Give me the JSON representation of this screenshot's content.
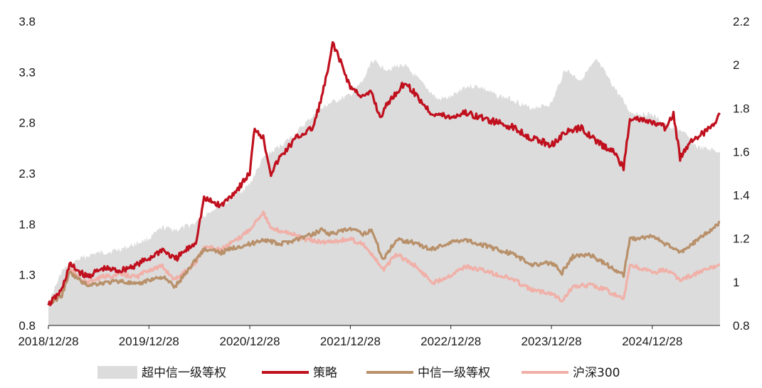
{
  "chart_data": {
    "type": "line",
    "title": "",
    "xlabel": "",
    "ylabel": "",
    "x_tick_labels": [
      "2018/12/28",
      "2019/12/28",
      "2020/12/28",
      "2021/12/28",
      "2022/12/28",
      "2023/12/28",
      "2024/12/28"
    ],
    "x_range": [
      "2018/12/28",
      "2025/08/31"
    ],
    "y_left": {
      "ticks": [
        "3.8",
        "3.3",
        "2.8",
        "2.3",
        "1.8",
        "1.3",
        "0.8"
      ],
      "lim": [
        0.8,
        3.8
      ]
    },
    "y_right": {
      "ticks": [
        "2.2",
        "2",
        "1.8",
        "1.6",
        "1.4",
        "1.2",
        "1",
        "0.8"
      ],
      "lim": [
        0.8,
        2.2
      ]
    },
    "grid": false,
    "legend_position": "bottom",
    "colors": {
      "超中信一级等权": "#dcdcdc",
      "策略": "#c0101e",
      "中信一级等权": "#b8906a",
      "沪深300": "#f0b0a8"
    },
    "series": [
      {
        "name": "超中信一级等权",
        "type": "area",
        "axis": "right",
        "points": [
          [
            "2018/12/28",
            0.9
          ],
          [
            "2019/02/15",
            1.05
          ],
          [
            "2019/04/10",
            1.1
          ],
          [
            "2019/06/10",
            1.13
          ],
          [
            "2019/08/10",
            1.14
          ],
          [
            "2019/10/10",
            1.16
          ],
          [
            "2019/12/28",
            1.2
          ],
          [
            "2020/02/15",
            1.25
          ],
          [
            "2020/04/10",
            1.24
          ],
          [
            "2020/06/10",
            1.27
          ],
          [
            "2020/08/10",
            1.33
          ],
          [
            "2020/10/10",
            1.37
          ],
          [
            "2020/12/28",
            1.45
          ],
          [
            "2021/02/15",
            1.57
          ],
          [
            "2021/04/10",
            1.62
          ],
          [
            "2021/06/10",
            1.68
          ],
          [
            "2021/08/10",
            1.76
          ],
          [
            "2021/10/10",
            1.82
          ],
          [
            "2021/12/28",
            1.86
          ],
          [
            "2022/02/15",
            1.93
          ],
          [
            "2022/03/15",
            2.02
          ],
          [
            "2022/05/10",
            1.98
          ],
          [
            "2022/07/10",
            2.0
          ],
          [
            "2022/09/10",
            1.92
          ],
          [
            "2022/11/10",
            1.84
          ],
          [
            "2022/12/28",
            1.85
          ],
          [
            "2023/02/15",
            1.9
          ],
          [
            "2023/04/10",
            1.9
          ],
          [
            "2023/06/10",
            1.86
          ],
          [
            "2023/08/10",
            1.84
          ],
          [
            "2023/10/10",
            1.8
          ],
          [
            "2023/12/28",
            1.82
          ],
          [
            "2024/02/15",
            1.98
          ],
          [
            "2024/04/10",
            1.93
          ],
          [
            "2024/06/10",
            2.02
          ],
          [
            "2024/08/10",
            1.9
          ],
          [
            "2024/10/10",
            1.78
          ],
          [
            "2024/12/28",
            1.77
          ],
          [
            "2025/02/15",
            1.72
          ],
          [
            "2025/04/10",
            1.7
          ],
          [
            "2025/06/10",
            1.62
          ],
          [
            "2025/08/31",
            1.6
          ]
        ]
      },
      {
        "name": "策略",
        "type": "line",
        "axis": "left",
        "points": [
          [
            "2018/12/28",
            1.0
          ],
          [
            "2019/02/15",
            1.15
          ],
          [
            "2019/03/15",
            1.4
          ],
          [
            "2019/05/15",
            1.28
          ],
          [
            "2019/07/15",
            1.36
          ],
          [
            "2019/09/15",
            1.34
          ],
          [
            "2019/11/15",
            1.4
          ],
          [
            "2019/12/28",
            1.46
          ],
          [
            "2020/02/15",
            1.55
          ],
          [
            "2020/04/01",
            1.45
          ],
          [
            "2020/06/15",
            1.62
          ],
          [
            "2020/07/15",
            2.05
          ],
          [
            "2020/09/15",
            1.98
          ],
          [
            "2020/11/15",
            2.15
          ],
          [
            "2020/12/28",
            2.3
          ],
          [
            "2021/01/15",
            2.75
          ],
          [
            "2021/02/15",
            2.65
          ],
          [
            "2021/03/15",
            2.3
          ],
          [
            "2021/04/15",
            2.45
          ],
          [
            "2021/06/15",
            2.65
          ],
          [
            "2021/08/15",
            2.75
          ],
          [
            "2021/09/15",
            3.05
          ],
          [
            "2021/10/15",
            3.4
          ],
          [
            "2021/10/25",
            3.6
          ],
          [
            "2021/11/15",
            3.45
          ],
          [
            "2021/12/28",
            3.15
          ],
          [
            "2022/02/15",
            3.05
          ],
          [
            "2022/03/15",
            3.1
          ],
          [
            "2022/04/15",
            2.85
          ],
          [
            "2022/05/15",
            3.0
          ],
          [
            "2022/07/15",
            3.2
          ],
          [
            "2022/08/15",
            3.1
          ],
          [
            "2022/10/15",
            2.9
          ],
          [
            "2022/12/28",
            2.85
          ],
          [
            "2023/02/15",
            2.9
          ],
          [
            "2023/04/15",
            2.85
          ],
          [
            "2023/06/15",
            2.8
          ],
          [
            "2023/08/15",
            2.75
          ],
          [
            "2023/10/15",
            2.65
          ],
          [
            "2023/12/28",
            2.58
          ],
          [
            "2024/02/15",
            2.7
          ],
          [
            "2024/04/15",
            2.75
          ],
          [
            "2024/06/15",
            2.6
          ],
          [
            "2024/08/15",
            2.5
          ],
          [
            "2024/09/15",
            2.35
          ],
          [
            "2024/10/08",
            2.85
          ],
          [
            "2024/12/28",
            2.8
          ],
          [
            "2025/02/15",
            2.75
          ],
          [
            "2025/03/15",
            2.88
          ],
          [
            "2025/04/08",
            2.45
          ],
          [
            "2025/05/15",
            2.62
          ],
          [
            "2025/07/15",
            2.72
          ],
          [
            "2025/08/31",
            2.88
          ]
        ]
      },
      {
        "name": "中信一级等权",
        "type": "line",
        "axis": "left",
        "points": [
          [
            "2018/12/28",
            1.0
          ],
          [
            "2019/02/15",
            1.1
          ],
          [
            "2019/03/15",
            1.32
          ],
          [
            "2019/05/15",
            1.2
          ],
          [
            "2019/07/15",
            1.22
          ],
          [
            "2019/09/15",
            1.24
          ],
          [
            "2019/11/15",
            1.2
          ],
          [
            "2019/12/28",
            1.25
          ],
          [
            "2020/02/15",
            1.28
          ],
          [
            "2020/04/01",
            1.18
          ],
          [
            "2020/06/15",
            1.45
          ],
          [
            "2020/07/15",
            1.55
          ],
          [
            "2020/09/15",
            1.52
          ],
          [
            "2020/11/15",
            1.58
          ],
          [
            "2020/12/28",
            1.6
          ],
          [
            "2021/02/15",
            1.65
          ],
          [
            "2021/04/15",
            1.6
          ],
          [
            "2021/06/15",
            1.65
          ],
          [
            "2021/08/15",
            1.7
          ],
          [
            "2021/09/15",
            1.75
          ],
          [
            "2021/10/15",
            1.7
          ],
          [
            "2021/12/28",
            1.75
          ],
          [
            "2022/02/15",
            1.7
          ],
          [
            "2022/03/15",
            1.75
          ],
          [
            "2022/04/25",
            1.45
          ],
          [
            "2022/06/15",
            1.65
          ],
          [
            "2022/08/15",
            1.62
          ],
          [
            "2022/10/15",
            1.55
          ],
          [
            "2022/12/28",
            1.62
          ],
          [
            "2023/02/15",
            1.65
          ],
          [
            "2023/04/15",
            1.6
          ],
          [
            "2023/06/15",
            1.55
          ],
          [
            "2023/08/15",
            1.5
          ],
          [
            "2023/10/15",
            1.4
          ],
          [
            "2023/12/28",
            1.42
          ],
          [
            "2024/02/05",
            1.32
          ],
          [
            "2024/03/15",
            1.48
          ],
          [
            "2024/05/15",
            1.5
          ],
          [
            "2024/07/15",
            1.4
          ],
          [
            "2024/09/15",
            1.3
          ],
          [
            "2024/10/08",
            1.65
          ],
          [
            "2024/12/28",
            1.68
          ],
          [
            "2025/02/15",
            1.6
          ],
          [
            "2025/04/08",
            1.52
          ],
          [
            "2025/06/15",
            1.65
          ],
          [
            "2025/08/31",
            1.82
          ]
        ]
      },
      {
        "name": "沪深300",
        "type": "line",
        "axis": "left",
        "points": [
          [
            "2018/12/28",
            1.0
          ],
          [
            "2019/02/15",
            1.15
          ],
          [
            "2019/03/15",
            1.35
          ],
          [
            "2019/05/15",
            1.22
          ],
          [
            "2019/07/15",
            1.28
          ],
          [
            "2019/09/15",
            1.3
          ],
          [
            "2019/11/15",
            1.28
          ],
          [
            "2019/12/28",
            1.35
          ],
          [
            "2020/02/15",
            1.38
          ],
          [
            "2020/04/01",
            1.25
          ],
          [
            "2020/06/15",
            1.42
          ],
          [
            "2020/07/15",
            1.58
          ],
          [
            "2020/09/15",
            1.55
          ],
          [
            "2020/11/15",
            1.65
          ],
          [
            "2020/12/28",
            1.75
          ],
          [
            "2021/02/15",
            1.92
          ],
          [
            "2021/03/15",
            1.75
          ],
          [
            "2021/05/15",
            1.72
          ],
          [
            "2021/07/15",
            1.65
          ],
          [
            "2021/09/15",
            1.62
          ],
          [
            "2021/12/28",
            1.65
          ],
          [
            "2022/02/15",
            1.6
          ],
          [
            "2022/04/25",
            1.35
          ],
          [
            "2022/06/15",
            1.5
          ],
          [
            "2022/08/15",
            1.4
          ],
          [
            "2022/10/25",
            1.22
          ],
          [
            "2022/12/28",
            1.3
          ],
          [
            "2023/02/15",
            1.38
          ],
          [
            "2023/04/15",
            1.35
          ],
          [
            "2023/06/15",
            1.3
          ],
          [
            "2023/08/15",
            1.25
          ],
          [
            "2023/10/15",
            1.15
          ],
          [
            "2023/12/28",
            1.12
          ],
          [
            "2024/02/05",
            1.05
          ],
          [
            "2024/03/15",
            1.18
          ],
          [
            "2024/05/15",
            1.2
          ],
          [
            "2024/07/15",
            1.15
          ],
          [
            "2024/09/15",
            1.05
          ],
          [
            "2024/10/08",
            1.4
          ],
          [
            "2024/12/28",
            1.32
          ],
          [
            "2025/02/15",
            1.35
          ],
          [
            "2025/04/08",
            1.25
          ],
          [
            "2025/06/15",
            1.32
          ],
          [
            "2025/08/31",
            1.4
          ]
        ]
      }
    ],
    "legend": [
      "超中信一级等权",
      "策略",
      "中信一级等权",
      "沪深300"
    ]
  }
}
